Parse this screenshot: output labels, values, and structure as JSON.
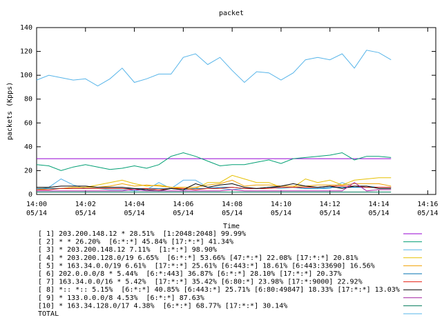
{
  "chart_data": {
    "type": "line",
    "title": "packet",
    "x_label": "Time",
    "y_label": "packets (Kpps)",
    "x": [
      0,
      0.5,
      1,
      1.5,
      2,
      2.5,
      3,
      3.5,
      4,
      4.5,
      5,
      5.5,
      6,
      6.5,
      7,
      7.5,
      8,
      8.5,
      9,
      9.5,
      10,
      10.5,
      11,
      11.5,
      12,
      12.5,
      13,
      13.5,
      14,
      14.5
    ],
    "xlim": [
      0,
      16.33
    ],
    "xticks": [
      {
        "value": 0,
        "label": "14:00",
        "sublabel": "05/14"
      },
      {
        "value": 2,
        "label": "14:02",
        "sublabel": "05/14"
      },
      {
        "value": 4,
        "label": "14:04",
        "sublabel": "05/14"
      },
      {
        "value": 6,
        "label": "14:06",
        "sublabel": "05/14"
      },
      {
        "value": 8,
        "label": "14:08",
        "sublabel": "05/14"
      },
      {
        "value": 10,
        "label": "14:10",
        "sublabel": "05/14"
      },
      {
        "value": 12,
        "label": "14:12",
        "sublabel": "05/14"
      },
      {
        "value": 14,
        "label": "14:14",
        "sublabel": "05/14"
      },
      {
        "value": 16,
        "label": "14:16",
        "sublabel": "05/14"
      }
    ],
    "ylim": [
      0,
      140
    ],
    "yticks": [
      0,
      20,
      40,
      60,
      80,
      100,
      120,
      140
    ],
    "series": [
      {
        "name": "[ 1] 203.200.148.12 * 28.51%  [1:2048:2048] 99.99%",
        "color": "#9400d3",
        "values": [
          30,
          30,
          30,
          30,
          30,
          30,
          30,
          30,
          30,
          30,
          30,
          30,
          30,
          30,
          30,
          30,
          30,
          30,
          30,
          30,
          30,
          30,
          30,
          30,
          30,
          30,
          30,
          30,
          30,
          30
        ]
      },
      {
        "name": "[ 2] * * 26.20%  [6:*:*] 45.84% [17:*:*] 41.34%",
        "color": "#009e73",
        "values": [
          25,
          24,
          20,
          23,
          25,
          23,
          21,
          22,
          24,
          22,
          25,
          32,
          35,
          32,
          28,
          24,
          25,
          25,
          27,
          29,
          26,
          30,
          31,
          32,
          33,
          35,
          29,
          32,
          32,
          31
        ]
      },
      {
        "name": "[ 3] * 203.200.148.12 7.11%  [1:*:*] 98.90%",
        "color": "#56b4e9",
        "values": [
          4,
          6,
          13,
          8,
          5,
          5,
          4,
          4,
          3,
          4,
          10,
          5,
          12,
          12,
          6,
          5,
          4,
          5,
          5,
          6,
          5,
          6,
          5,
          5,
          5,
          10,
          6,
          7,
          6,
          6
        ]
      },
      {
        "name": "[ 4] * 203.200.128.0/19 6.65%  [6:*:*] 53.66% [47:*:*] 22.08% [17:*:*] 20.81%",
        "color": "#e6c000",
        "values": [
          4,
          5,
          5,
          6,
          6,
          8,
          10,
          12,
          9,
          7,
          8,
          6,
          5,
          5,
          10,
          10,
          16,
          13,
          10,
          10,
          6,
          6,
          13,
          10,
          12,
          8,
          12,
          13,
          14,
          14
        ]
      },
      {
        "name": "[ 5] * 163.34.0.0/19 6.61%  [17:*:*] 25.61% [6:443:*] 18.61% [6:443:33690] 16.56%",
        "color": "#f0a000",
        "values": [
          5,
          5,
          5,
          6,
          6,
          6,
          7,
          9,
          7,
          8,
          7,
          6,
          6,
          6,
          8,
          9,
          12,
          7,
          8,
          8,
          7,
          7,
          7,
          8,
          8,
          8,
          9,
          9,
          9,
          7
        ]
      },
      {
        "name": "[ 6] 202.0.0.0/8 * 5.44%  [6:*:443] 36.87% [6:*:*] 28.10% [17:*:*] 20.37%",
        "color": "#0072b2",
        "values": [
          5,
          5,
          5,
          5,
          5,
          5,
          5,
          5,
          5,
          5,
          5,
          5,
          4,
          5,
          5,
          6,
          6,
          5,
          5,
          6,
          6,
          6,
          5,
          5,
          6,
          6,
          6,
          6,
          6,
          6
        ]
      },
      {
        "name": "[ 7] 163.34.0.0/16 * 5.42%  [17:*:*] 35.42% [6:80:*] 23.98% [17:*:9000] 22.92%",
        "color": "#e51e10",
        "values": [
          4,
          4,
          5,
          5,
          5,
          5,
          5,
          5,
          4,
          5,
          4,
          5,
          5,
          4,
          5,
          5,
          6,
          5,
          5,
          5,
          6,
          6,
          6,
          6,
          7,
          7,
          7,
          6,
          6,
          6
        ]
      },
      {
        "name": "[ 8] *:: *:: 5.15%  [6:*:*] 40.85% [6:443:*] 25.71% [6:80:49847] 18.33% [17:*:*] 13.03%",
        "color": "#000000",
        "values": [
          6,
          6,
          7,
          7,
          7,
          6,
          6,
          6,
          5,
          4,
          3,
          5,
          4,
          9,
          6,
          8,
          9,
          6,
          5,
          6,
          7,
          9,
          7,
          6,
          7,
          5,
          7,
          7,
          5,
          5
        ]
      },
      {
        "name": "[ 9] * 133.0.0.0/8 4.53%  [6:*:*] 87.63%",
        "color": "#a020a0",
        "values": [
          3,
          3,
          3,
          3,
          3,
          3,
          3,
          3,
          4,
          3,
          3,
          3,
          3,
          3,
          3,
          3,
          4,
          3,
          3,
          3,
          3,
          3,
          3,
          3,
          3,
          3,
          10,
          3,
          4,
          4
        ]
      },
      {
        "name": "[10] * 163.34.128.0/17 4.38%  [6:*:*] 68.77% [17:*:*] 30.14%",
        "color": "#007a5a",
        "values": [
          2,
          2,
          2,
          2,
          2,
          2,
          2,
          2,
          2,
          2,
          2,
          2,
          2,
          2,
          2,
          2,
          2,
          2,
          2,
          2,
          2,
          2,
          2,
          2,
          2,
          2,
          2,
          2,
          2,
          2
        ]
      },
      {
        "name": "TOTAL",
        "color": "#56b4e9",
        "values": [
          96,
          100,
          98,
          96,
          97,
          91,
          97,
          106,
          94,
          97,
          101,
          101,
          115,
          118,
          109,
          115,
          104,
          94,
          103,
          102,
          96,
          102,
          113,
          115,
          113,
          118,
          106,
          121,
          119,
          113
        ]
      }
    ]
  }
}
